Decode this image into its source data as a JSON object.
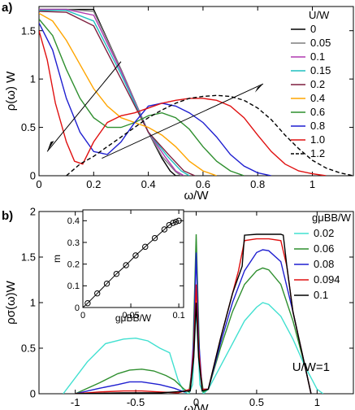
{
  "chart_data": [
    {
      "type": "line",
      "panel_label": "a)",
      "xlabel": "ω/W",
      "ylabel": "ρ(ω) W",
      "xlim": [
        0,
        1.15
      ],
      "ylim": [
        0,
        1.75
      ],
      "xticks": [
        "0",
        "0.2",
        "0.4",
        "0.6",
        "0.8",
        "1"
      ],
      "yticks": [
        "0",
        "0.5",
        "1",
        "1.5"
      ],
      "legend_title": "U/W",
      "legend_position": "right",
      "grid": false,
      "series": [
        {
          "name": "0",
          "color": "#000000",
          "dash": false,
          "x": [
            0,
            0.1,
            0.2,
            0.3,
            0.4,
            0.45,
            0.48,
            0.5,
            0.52
          ],
          "y": [
            1.72,
            1.72,
            1.72,
            1.1,
            0.45,
            0.18,
            0.05,
            0.0,
            0.0
          ]
        },
        {
          "name": "0.05",
          "color": "#7f7f7f",
          "dash": false,
          "x": [
            0,
            0.1,
            0.2,
            0.3,
            0.4,
            0.45,
            0.5,
            0.52
          ],
          "y": [
            1.72,
            1.72,
            1.7,
            1.1,
            0.45,
            0.2,
            0.04,
            0.0
          ]
        },
        {
          "name": "0.1",
          "color": "#b03ab0",
          "dash": false,
          "x": [
            0,
            0.1,
            0.2,
            0.3,
            0.4,
            0.46,
            0.5,
            0.53
          ],
          "y": [
            1.72,
            1.72,
            1.66,
            1.08,
            0.45,
            0.2,
            0.05,
            0.0
          ]
        },
        {
          "name": "0.15",
          "color": "#1fbfbf",
          "dash": false,
          "x": [
            0,
            0.1,
            0.2,
            0.3,
            0.4,
            0.47,
            0.52,
            0.55
          ],
          "y": [
            1.71,
            1.71,
            1.6,
            1.05,
            0.45,
            0.2,
            0.05,
            0.0
          ]
        },
        {
          "name": "0.2",
          "color": "#7f1f3f",
          "dash": false,
          "x": [
            0,
            0.1,
            0.2,
            0.3,
            0.4,
            0.48,
            0.53,
            0.57
          ],
          "y": [
            1.7,
            1.69,
            1.55,
            1.0,
            0.45,
            0.2,
            0.05,
            0.0
          ]
        },
        {
          "name": "0.4",
          "color": "#ffa500",
          "dash": false,
          "x": [
            0,
            0.05,
            0.1,
            0.15,
            0.2,
            0.25,
            0.3,
            0.35,
            0.4,
            0.45,
            0.5,
            0.55,
            0.6,
            0.65
          ],
          "y": [
            1.68,
            1.6,
            1.4,
            1.15,
            0.9,
            0.72,
            0.6,
            0.55,
            0.5,
            0.42,
            0.3,
            0.15,
            0.05,
            0.0
          ]
        },
        {
          "name": "0.6",
          "color": "#2f8f2f",
          "dash": false,
          "x": [
            0,
            0.05,
            0.1,
            0.15,
            0.2,
            0.25,
            0.3,
            0.35,
            0.4,
            0.45,
            0.5,
            0.55,
            0.6,
            0.65,
            0.7,
            0.75
          ],
          "y": [
            1.62,
            1.45,
            1.1,
            0.8,
            0.6,
            0.5,
            0.5,
            0.55,
            0.62,
            0.65,
            0.6,
            0.48,
            0.3,
            0.15,
            0.05,
            0.0
          ]
        },
        {
          "name": "0.8",
          "color": "#1f1fd0",
          "dash": false,
          "x": [
            0,
            0.05,
            0.1,
            0.15,
            0.2,
            0.25,
            0.3,
            0.35,
            0.4,
            0.45,
            0.5,
            0.55,
            0.6,
            0.65,
            0.7,
            0.75,
            0.8,
            0.85
          ],
          "y": [
            1.58,
            1.3,
            0.8,
            0.45,
            0.25,
            0.22,
            0.35,
            0.55,
            0.72,
            0.75,
            0.72,
            0.65,
            0.55,
            0.4,
            0.22,
            0.1,
            0.03,
            0.0
          ]
        },
        {
          "name": "1.0",
          "color": "#e01010",
          "dash": false,
          "x": [
            0,
            0.03,
            0.06,
            0.1,
            0.13,
            0.16,
            0.2,
            0.25,
            0.3,
            0.35,
            0.4,
            0.45,
            0.5,
            0.55,
            0.6,
            0.65,
            0.7,
            0.75,
            0.8,
            0.85,
            0.9,
            0.95,
            1.0,
            1.05
          ],
          "y": [
            1.5,
            1.2,
            0.75,
            0.35,
            0.15,
            0.12,
            0.35,
            0.55,
            0.62,
            0.65,
            0.7,
            0.75,
            0.78,
            0.8,
            0.8,
            0.78,
            0.72,
            0.6,
            0.42,
            0.25,
            0.12,
            0.05,
            0.02,
            0.0
          ]
        },
        {
          "name": "1.2",
          "color": "#000000",
          "dash": true,
          "x": [
            0.1,
            0.15,
            0.2,
            0.25,
            0.3,
            0.35,
            0.4,
            0.45,
            0.5,
            0.55,
            0.6,
            0.65,
            0.7,
            0.75,
            0.8,
            0.85,
            0.9,
            0.95,
            1.0,
            1.05,
            1.1,
            1.15
          ],
          "y": [
            0.0,
            0.12,
            0.2,
            0.3,
            0.4,
            0.5,
            0.6,
            0.68,
            0.75,
            0.8,
            0.82,
            0.83,
            0.82,
            0.78,
            0.7,
            0.58,
            0.42,
            0.28,
            0.16,
            0.08,
            0.03,
            0.0
          ]
        }
      ]
    },
    {
      "type": "line",
      "panel_label": "b)",
      "xlabel": "ω/W",
      "ylabel": "ρσ(ω)W",
      "xlim": [
        -1.3,
        1.3
      ],
      "ylim": [
        0,
        2
      ],
      "xticks": [
        "-1",
        "-0.5",
        "0",
        "0.5",
        "1"
      ],
      "yticks": [
        "0",
        "0.5",
        "1",
        "1.5",
        "2"
      ],
      "legend_title": "gμBB/W",
      "legend_position": "right",
      "annotation": "U/W=1",
      "grid": false,
      "series": [
        {
          "name": "0.02",
          "color": "#40e0d0",
          "x": [
            -1.1,
            -0.9,
            -0.75,
            -0.6,
            -0.5,
            -0.4,
            -0.3,
            -0.22,
            -0.15,
            -0.1,
            -0.06,
            -0.03,
            0,
            0.03,
            0.06,
            0.1,
            0.2,
            0.3,
            0.4,
            0.5,
            0.55,
            0.6,
            0.7,
            0.8,
            0.9,
            1.0,
            1.05
          ],
          "y": [
            0.0,
            0.35,
            0.55,
            0.6,
            0.61,
            0.58,
            0.5,
            0.45,
            0.15,
            0.02,
            0.0,
            0.1,
            0.95,
            0.1,
            0.0,
            0.05,
            0.3,
            0.55,
            0.8,
            0.95,
            1.0,
            0.98,
            0.85,
            0.6,
            0.3,
            0.05,
            0.0
          ]
        },
        {
          "name": "0.06",
          "color": "#2f8f2f",
          "x": [
            -1.0,
            -0.8,
            -0.65,
            -0.55,
            -0.45,
            -0.35,
            -0.25,
            -0.18,
            -0.1,
            -0.06,
            -0.03,
            0,
            0.03,
            0.06,
            0.1,
            0.2,
            0.3,
            0.4,
            0.5,
            0.55,
            0.6,
            0.7,
            0.8,
            0.9,
            0.95
          ],
          "y": [
            0.0,
            0.12,
            0.22,
            0.26,
            0.27,
            0.25,
            0.2,
            0.15,
            0.05,
            0.02,
            0.3,
            1.75,
            0.3,
            0.02,
            0.05,
            0.5,
            0.9,
            1.2,
            1.35,
            1.38,
            1.36,
            1.2,
            0.8,
            0.3,
            0.0
          ]
        },
        {
          "name": "0.08",
          "color": "#1f1fd0",
          "x": [
            -1.0,
            -0.8,
            -0.65,
            -0.55,
            -0.45,
            -0.3,
            -0.18,
            -0.1,
            -0.05,
            -0.02,
            0,
            0.02,
            0.05,
            0.1,
            0.2,
            0.3,
            0.4,
            0.5,
            0.55,
            0.6,
            0.7,
            0.8,
            0.9,
            0.95
          ],
          "y": [
            0.0,
            0.06,
            0.1,
            0.13,
            0.13,
            0.1,
            0.06,
            0.02,
            0.05,
            0.6,
            1.55,
            0.6,
            0.05,
            0.05,
            0.55,
            1.0,
            1.35,
            1.55,
            1.58,
            1.57,
            1.45,
            0.9,
            0.3,
            0.0
          ]
        },
        {
          "name": "0.094",
          "color": "#e01010",
          "x": [
            -1.0,
            -0.8,
            -0.6,
            -0.45,
            -0.3,
            -0.15,
            -0.05,
            -0.02,
            0,
            0.02,
            0.05,
            0.1,
            0.2,
            0.3,
            0.35,
            0.4,
            0.5,
            0.6,
            0.7,
            0.75,
            0.8,
            0.9,
            0.95
          ],
          "y": [
            0.0,
            0.02,
            0.03,
            0.03,
            0.02,
            0.01,
            0.05,
            0.5,
            1.2,
            0.5,
            0.05,
            0.05,
            0.6,
            1.1,
            1.35,
            1.68,
            1.7,
            1.7,
            1.68,
            1.4,
            0.9,
            0.3,
            0.0
          ]
        },
        {
          "name": "0.1",
          "color": "#000000",
          "x": [
            -1.0,
            -0.6,
            -0.3,
            -0.05,
            -0.02,
            0,
            0.02,
            0.05,
            0.1,
            0.2,
            0.3,
            0.38,
            0.4,
            0.5,
            0.6,
            0.7,
            0.72,
            0.75,
            0.8,
            0.9,
            0.95
          ],
          "y": [
            0.0,
            0.01,
            0.01,
            0.03,
            0.4,
            1.0,
            0.4,
            0.03,
            0.05,
            0.6,
            1.1,
            1.4,
            1.74,
            1.75,
            1.75,
            1.75,
            1.74,
            1.4,
            0.9,
            0.3,
            0.0
          ]
        }
      ],
      "inset": {
        "type": "scatter",
        "xlabel": "gμBB/W",
        "ylabel": "m",
        "xlim": [
          0,
          0.105
        ],
        "ylim": [
          0,
          0.45
        ],
        "xticks": [
          "0",
          "0.05",
          "0.1"
        ],
        "yticks": [
          "0",
          "0.1",
          "0.2",
          "0.3",
          "0.4"
        ],
        "x": [
          0.005,
          0.015,
          0.025,
          0.035,
          0.045,
          0.055,
          0.065,
          0.075,
          0.085,
          0.09,
          0.094,
          0.097,
          0.1
        ],
        "y": [
          0.02,
          0.065,
          0.11,
          0.155,
          0.195,
          0.24,
          0.28,
          0.32,
          0.36,
          0.38,
          0.39,
          0.395,
          0.4
        ]
      }
    }
  ]
}
